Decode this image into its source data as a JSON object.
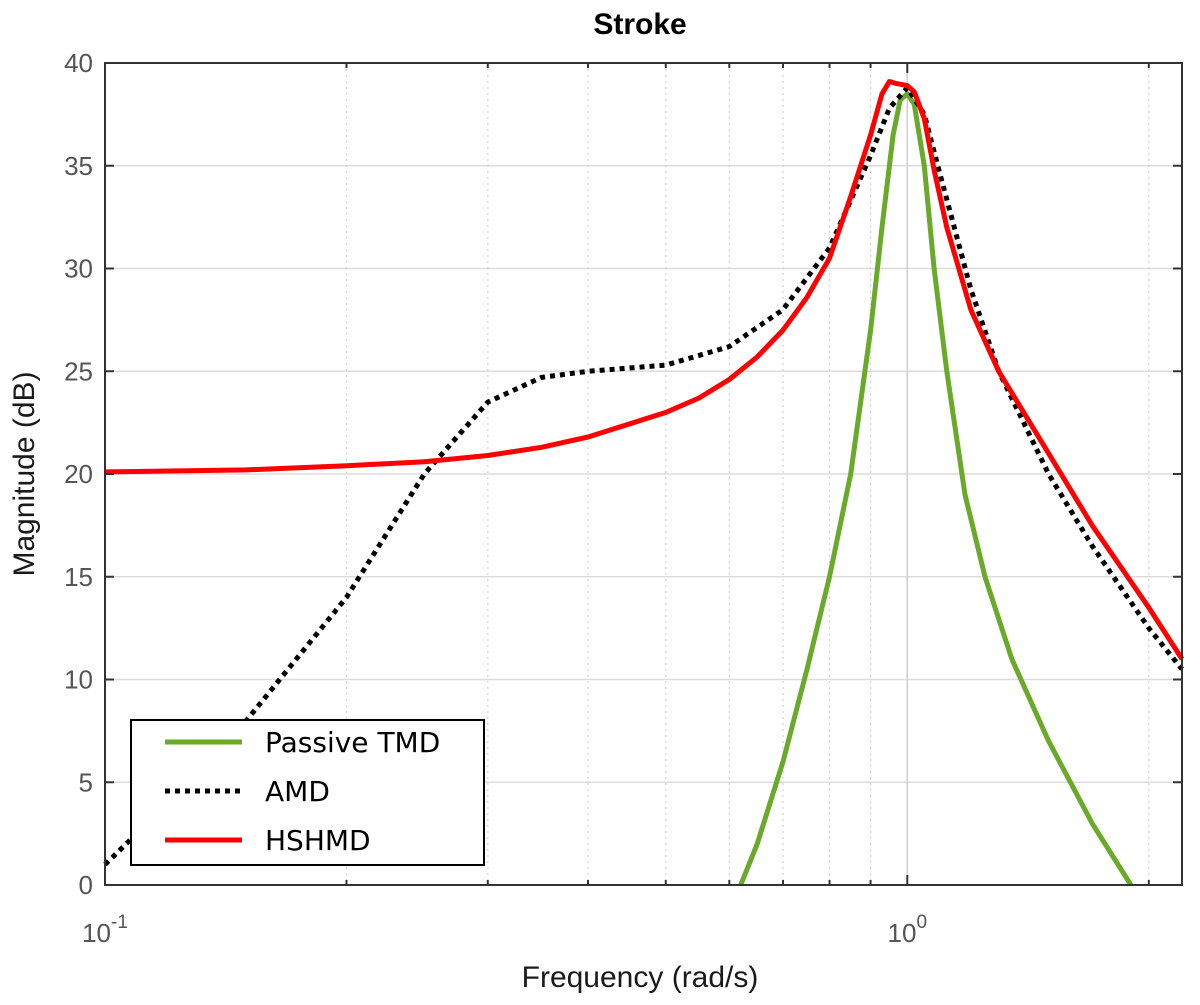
{
  "chart_data": {
    "type": "line",
    "title": "Stroke",
    "xlabel": "Frequency  (rad/s)",
    "ylabel": "Magnitude (dB)",
    "xscale": "log",
    "xlim": [
      0.1,
      2.2
    ],
    "ylim": [
      0,
      40
    ],
    "x_tick_labels": [
      {
        "value": 0.1,
        "base": "10",
        "exp": "-1"
      },
      {
        "value": 1.0,
        "base": "10",
        "exp": "0"
      }
    ],
    "y_tick_labels": [
      "0",
      "5",
      "10",
      "15",
      "20",
      "25",
      "30",
      "35",
      "40"
    ],
    "grid": true,
    "legend_position": "bottom-left",
    "series": [
      {
        "name": "Passive TMD",
        "color": "#6aaa2a",
        "style": "solid",
        "x": [
          0.62,
          0.65,
          0.7,
          0.75,
          0.8,
          0.85,
          0.9,
          0.93,
          0.96,
          0.98,
          1.0,
          1.02,
          1.05,
          1.08,
          1.12,
          1.18,
          1.25,
          1.35,
          1.5,
          1.7,
          1.9
        ],
        "y": [
          0,
          2,
          6,
          10.5,
          15,
          20,
          27,
          32,
          36.5,
          38.2,
          38.5,
          38.0,
          35,
          30,
          25,
          19,
          15,
          11,
          7,
          3,
          0
        ]
      },
      {
        "name": "AMD",
        "color": "#000000",
        "style": "dotted",
        "x": [
          0.1,
          0.12,
          0.15,
          0.2,
          0.25,
          0.3,
          0.35,
          0.4,
          0.5,
          0.6,
          0.7,
          0.8,
          0.9,
          0.95,
          1.0,
          1.05,
          1.1,
          1.2,
          1.3,
          1.5,
          1.7,
          2.0,
          2.2
        ],
        "y": [
          1,
          4,
          8,
          14,
          20,
          23.5,
          24.7,
          25.0,
          25.3,
          26.2,
          28,
          31,
          35.5,
          37.8,
          38.8,
          37.5,
          34.5,
          29,
          25,
          20,
          16.5,
          12.5,
          10.5
        ]
      },
      {
        "name": "HSHMD",
        "color": "#ff0000",
        "style": "solid",
        "x": [
          0.1,
          0.15,
          0.2,
          0.25,
          0.3,
          0.35,
          0.4,
          0.5,
          0.55,
          0.6,
          0.65,
          0.7,
          0.75,
          0.8,
          0.85,
          0.9,
          0.93,
          0.95,
          0.97,
          1.0,
          1.02,
          1.05,
          1.08,
          1.12,
          1.2,
          1.3,
          1.5,
          1.7,
          2.0,
          2.2
        ],
        "y": [
          20.1,
          20.2,
          20.4,
          20.6,
          20.9,
          21.3,
          21.8,
          23.0,
          23.7,
          24.6,
          25.7,
          27.0,
          28.6,
          30.5,
          33.5,
          36.5,
          38.5,
          39.1,
          39.0,
          38.9,
          38.6,
          37.3,
          34.8,
          32,
          28,
          25,
          21,
          17.5,
          13.5,
          11
        ]
      }
    ]
  }
}
